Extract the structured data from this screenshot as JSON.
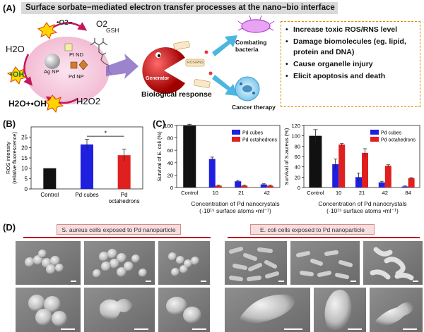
{
  "panel_a": {
    "label": "(A)",
    "title": "Surface sorbate−mediated electron transfer processes at the nano−bio interface",
    "species": {
      "o2_radical": "•O2−",
      "o2": "O2",
      "h2o_top": "H2O",
      "oh_left": "•OH",
      "h2o_oh": "H2O+•OH",
      "h2o2": "H2O2",
      "gsh": "GSH",
      "pt_nd": "Pt ND",
      "ag_np": "Ag NP",
      "pd_np": "Pd NP"
    },
    "generator": "Generator",
    "ros_label": "ROS/RNS",
    "bio_response": "Biological response",
    "combating": "Combating bacteria",
    "cancer": "Cancer therapy",
    "effects": [
      "Increase toxic ROS/RNS level",
      "Damage biomolecules (eg. lipid, protein and DNA)",
      "Cause organelle injury",
      "Elicit apoptosis and death"
    ]
  },
  "panel_b": {
    "label": "(B)",
    "chart_data": {
      "type": "bar",
      "categories": [
        "Control",
        "Pd cubes",
        "Pd octahedrons"
      ],
      "values": [
        10,
        21.5,
        16.3
      ],
      "errors": [
        0,
        2.5,
        3
      ],
      "colors": [
        "#111111",
        "#1f1fe0",
        "#e01f1f"
      ],
      "ylabel": "ROS intensity (relative fluorescence)",
      "ylim": [
        0,
        30
      ],
      "yticks": [
        0,
        5,
        10,
        15,
        20,
        25
      ],
      "significance": "*"
    }
  },
  "panel_c": {
    "label": "(C)",
    "xlabel": "Concentration of Pd nanocrystals",
    "xunit": "(·10¹⁵ surface atoms •ml⁻¹)",
    "charts": [
      {
        "type": "bar",
        "ylabel": "Survival of E. coli (%)",
        "ylim": [
          0,
          100
        ],
        "yticks": [
          0,
          20,
          40,
          60,
          80,
          100
        ],
        "categories": [
          "Control",
          "10",
          "21",
          "42"
        ],
        "control": 100,
        "control_err": 2,
        "series": [
          {
            "name": "Pd cubes",
            "color": "#1f1fe0",
            "values": [
              null,
              46,
              10,
              5
            ],
            "errors": [
              0,
              3,
              1.5,
              1
            ]
          },
          {
            "name": "Pd octahedrons",
            "color": "#e01f1f",
            "values": [
              null,
              3,
              3,
              3
            ],
            "errors": [
              0,
              0.8,
              0.8,
              0.8
            ]
          }
        ],
        "legend": "top-right"
      },
      {
        "type": "bar",
        "ylabel": "Survival of S.aureus (%)",
        "ylim": [
          0,
          120
        ],
        "yticks": [
          0,
          20,
          40,
          60,
          80,
          100,
          120
        ],
        "categories": [
          "Control",
          "10",
          "21",
          "42",
          "84"
        ],
        "control": 100,
        "control_err": 12,
        "series": [
          {
            "name": "Pd cubes",
            "color": "#1f1fe0",
            "values": [
              null,
              45,
              20,
              10,
              2
            ],
            "errors": [
              0,
              10,
              8,
              2,
              1
            ]
          },
          {
            "name": "Pd octahedrons",
            "color": "#e01f1f",
            "values": [
              null,
              83,
              67,
              42,
              18
            ],
            "errors": [
              0,
              2,
              8,
              2,
              1
            ]
          }
        ],
        "legend": "top-right"
      }
    ]
  },
  "panel_d": {
    "label": "(D)",
    "banner_left": "S. aureus cells exposed to Pd nanoparticle",
    "banner_right": "E. coli cells exposed to Pd nanoparticle"
  }
}
